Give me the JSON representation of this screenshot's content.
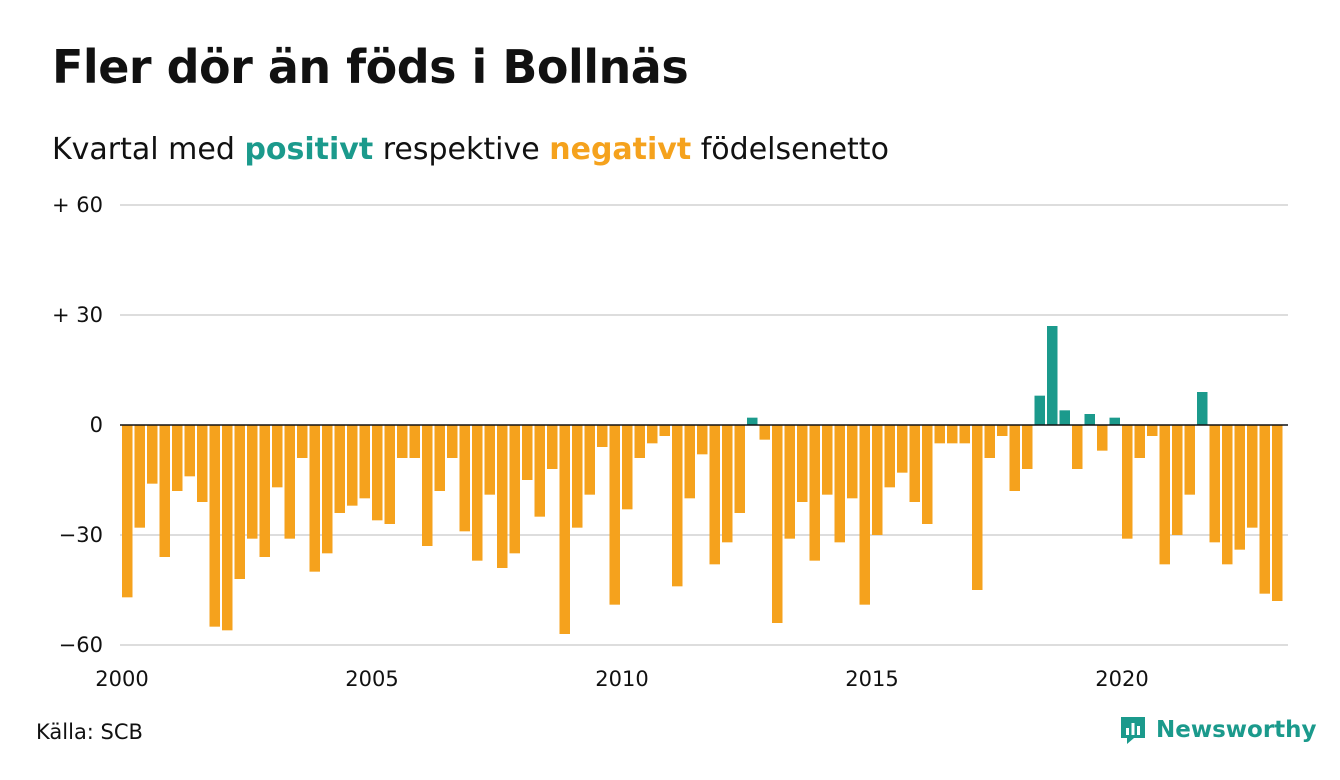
{
  "title": "Fler dör än föds i Bollnäs",
  "subtitle": {
    "prefix": "Kvartal med",
    "positive_word": "positivt",
    "middle": "respektive",
    "negative_word": "negativt",
    "suffix": "födelsenetto"
  },
  "colors": {
    "positive": "#1b9a8c",
    "negative": "#f5a21d",
    "text": "#111111",
    "grid": "#dddddd"
  },
  "source": "Källa: SCB",
  "brand": {
    "name": "Newsworthy",
    "icon": "newsworthy-logo-icon"
  },
  "chart_data": {
    "type": "bar",
    "start_year": 2000,
    "x_tick_labels": [
      "2000",
      "2005",
      "2010",
      "2015",
      "2020"
    ],
    "x_tick_values": [
      2000,
      2005,
      2010,
      2015,
      2020
    ],
    "y_ticks": [
      60,
      30,
      0,
      -30,
      -60
    ],
    "y_tick_labels": [
      "+ 60",
      "+ 30",
      "0",
      "−30",
      "−60"
    ],
    "ylim": [
      -60,
      60
    ],
    "grid": true,
    "values": [
      -47,
      -28,
      -16,
      -36,
      -18,
      -14,
      -21,
      -55,
      -56,
      -42,
      -31,
      -36,
      -17,
      -31,
      -9,
      -40,
      -35,
      -24,
      -22,
      -20,
      -26,
      -27,
      -9,
      -9,
      -33,
      -18,
      -9,
      -29,
      -37,
      -19,
      -39,
      -35,
      -15,
      -25,
      -12,
      -57,
      -28,
      -19,
      -6,
      -49,
      -23,
      -9,
      -5,
      -3,
      -44,
      -20,
      -8,
      -38,
      -32,
      -24,
      2,
      -4,
      -54,
      -31,
      -21,
      -37,
      -19,
      -32,
      -20,
      -49,
      -30,
      -17,
      -13,
      -21,
      -27,
      -5,
      -5,
      -5,
      -45,
      -9,
      -3,
      -18,
      -12,
      8,
      27,
      4,
      -12,
      3,
      -7,
      2,
      -31,
      -9,
      -3,
      -38,
      -30,
      -19,
      9,
      -32,
      -38,
      -34,
      -28,
      -46,
      -48
    ]
  }
}
